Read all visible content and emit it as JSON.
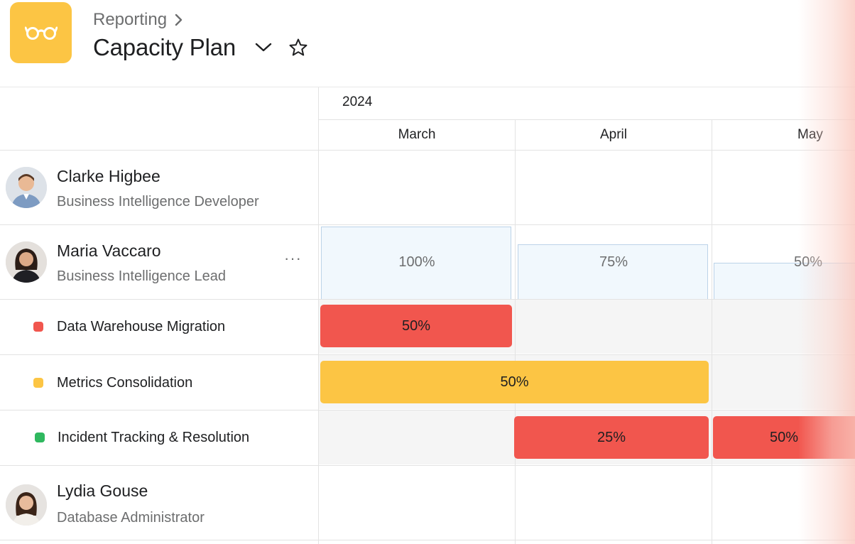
{
  "header": {
    "breadcrumb": "Reporting",
    "title": "Capacity Plan",
    "app_icon": "glasses-icon",
    "accent_color": "#fcc544"
  },
  "timeline": {
    "year": "2024",
    "months": [
      "March",
      "April",
      "May"
    ]
  },
  "people": [
    {
      "name": "Clarke Higbee",
      "role": "Business Intelligence Developer"
    },
    {
      "name": "Maria Vaccaro",
      "role": "Business Intelligence Lead",
      "more_label": "···",
      "capacity": [
        "100%",
        "75%",
        "50%"
      ],
      "capacity_values": [
        100,
        75,
        50
      ]
    },
    {
      "name": "Lydia Gouse",
      "role": "Database Administrator"
    }
  ],
  "tasks": [
    {
      "name": "Data Warehouse Migration",
      "color": "#f1564e",
      "allocations": [
        "50%"
      ]
    },
    {
      "name": "Metrics Consolidation",
      "color": "#fcc544",
      "allocations": [
        "50%"
      ]
    },
    {
      "name": "Incident Tracking & Resolution",
      "color": "#2fb85f",
      "bar_color": "#f1564e",
      "allocations": [
        "25%",
        "50%"
      ]
    }
  ]
}
